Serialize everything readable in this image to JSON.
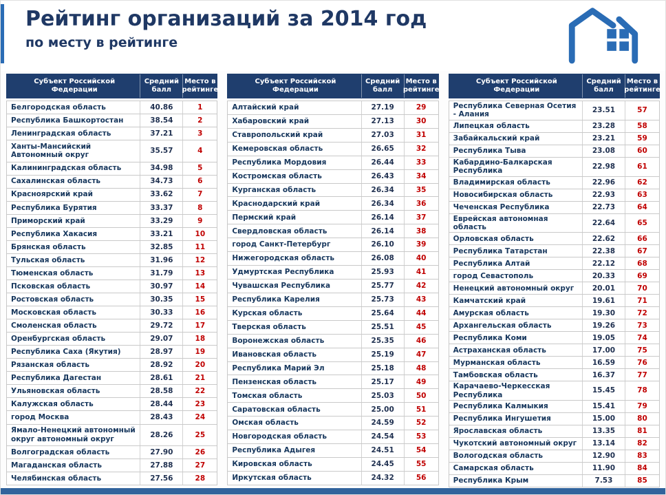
{
  "page": {
    "title": "Рейтинг организаций за 2014 год",
    "subtitle": "по месту в рейтинге"
  },
  "colors": {
    "title_blue": "#1f3864",
    "header_bg": "#1f3e6e",
    "rank_red": "#c00000",
    "logo_blue": "#2a6cb5",
    "bottom_bar": "#31639c"
  },
  "table_header": {
    "subject": "Субъект Российской Федерации",
    "score": "Средний балл",
    "place": "Место в рейтинге"
  },
  "tables": [
    {
      "rows": [
        {
          "subject": "Белгородская область",
          "score": "40.86",
          "place": "1"
        },
        {
          "subject": "Республика Башкортостан",
          "score": "38.54",
          "place": "2"
        },
        {
          "subject": "Ленинградская область",
          "score": "37.21",
          "place": "3"
        },
        {
          "subject": "Ханты-Мансийский Автономный округ",
          "score": "35.57",
          "place": "4"
        },
        {
          "subject": "Калининградская область",
          "score": "34.98",
          "place": "5"
        },
        {
          "subject": "Сахалинская область",
          "score": "34.73",
          "place": "6"
        },
        {
          "subject": "Красноярский край",
          "score": "33.62",
          "place": "7"
        },
        {
          "subject": "Республика Бурятия",
          "score": "33.37",
          "place": "8"
        },
        {
          "subject": "Приморский край",
          "score": "33.29",
          "place": "9"
        },
        {
          "subject": "Республика Хакасия",
          "score": "33.21",
          "place": "10"
        },
        {
          "subject": "Брянская область",
          "score": "32.85",
          "place": "11"
        },
        {
          "subject": "Тульская область",
          "score": "31.96",
          "place": "12"
        },
        {
          "subject": "Тюменская область",
          "score": "31.79",
          "place": "13"
        },
        {
          "subject": "Псковская область",
          "score": "30.97",
          "place": "14"
        },
        {
          "subject": "Ростовская область",
          "score": "30.35",
          "place": "15"
        },
        {
          "subject": "Московская область",
          "score": "30.33",
          "place": "16"
        },
        {
          "subject": "Смоленская область",
          "score": "29.72",
          "place": "17"
        },
        {
          "subject": "Оренбургская область",
          "score": "29.07",
          "place": "18"
        },
        {
          "subject": "Республика Саха (Якутия)",
          "score": "28.97",
          "place": "19"
        },
        {
          "subject": "Рязанская область",
          "score": "28.92",
          "place": "20"
        },
        {
          "subject": "Республика Дагестан",
          "score": "28.61",
          "place": "21"
        },
        {
          "subject": "Ульяновская область",
          "score": "28.58",
          "place": "22"
        },
        {
          "subject": "Калужская область",
          "score": "28.44",
          "place": "23"
        },
        {
          "subject": "город Москва",
          "score": "28.43",
          "place": "24"
        },
        {
          "subject": "Ямало-Ненецкий автономный округ автономный округ",
          "score": "28.26",
          "place": "25"
        },
        {
          "subject": "Волгоградская область",
          "score": "27.90",
          "place": "26"
        },
        {
          "subject": "Магаданская область",
          "score": "27.88",
          "place": "27"
        },
        {
          "subject": "Челябинская область",
          "score": "27.56",
          "place": "28"
        }
      ]
    },
    {
      "rows": [
        {
          "subject": "Алтайский край",
          "score": "27.19",
          "place": "29"
        },
        {
          "subject": "Хабаровский край",
          "score": "27.13",
          "place": "30"
        },
        {
          "subject": "Ставропольский край",
          "score": "27.03",
          "place": "31"
        },
        {
          "subject": "Кемеровская область",
          "score": "26.65",
          "place": "32"
        },
        {
          "subject": "Республика Мордовия",
          "score": "26.44",
          "place": "33"
        },
        {
          "subject": "Костромская область",
          "score": "26.43",
          "place": "34"
        },
        {
          "subject": "Курганская область",
          "score": "26.34",
          "place": "35"
        },
        {
          "subject": "Краснодарский край",
          "score": "26.34",
          "place": "36"
        },
        {
          "subject": "Пермский край",
          "score": "26.14",
          "place": "37"
        },
        {
          "subject": "Свердловская область",
          "score": "26.14",
          "place": "38"
        },
        {
          "subject": "город Санкт-Петербург",
          "score": "26.10",
          "place": "39"
        },
        {
          "subject": "Нижегородская область",
          "score": "26.08",
          "place": "40"
        },
        {
          "subject": "Удмуртская Республика",
          "score": "25.93",
          "place": "41"
        },
        {
          "subject": "Чувашская Республика",
          "score": "25.77",
          "place": "42"
        },
        {
          "subject": "Республика Карелия",
          "score": "25.73",
          "place": "43"
        },
        {
          "subject": "Курская область",
          "score": "25.64",
          "place": "44"
        },
        {
          "subject": "Тверская область",
          "score": "25.51",
          "place": "45"
        },
        {
          "subject": "Воронежская область",
          "score": "25.35",
          "place": "46"
        },
        {
          "subject": "Ивановская область",
          "score": "25.19",
          "place": "47"
        },
        {
          "subject": "Республика Марий Эл",
          "score": "25.18",
          "place": "48"
        },
        {
          "subject": "Пензенская область",
          "score": "25.17",
          "place": "49"
        },
        {
          "subject": "Томская область",
          "score": "25.03",
          "place": "50"
        },
        {
          "subject": "Саратовская область",
          "score": "25.00",
          "place": "51"
        },
        {
          "subject": "Омская область",
          "score": "24.59",
          "place": "52"
        },
        {
          "subject": "Новгородская область",
          "score": "24.54",
          "place": "53"
        },
        {
          "subject": "Республика Адыгея",
          "score": "24.51",
          "place": "54"
        },
        {
          "subject": "Кировская область",
          "score": "24.45",
          "place": "55"
        },
        {
          "subject": "Иркутская область",
          "score": "24.32",
          "place": "56"
        }
      ]
    },
    {
      "rows": [
        {
          "subject": "Республика Северная Осетия - Алания",
          "score": "23.51",
          "place": "57"
        },
        {
          "subject": "Липецкая область",
          "score": "23.28",
          "place": "58"
        },
        {
          "subject": "Забайкальский край",
          "score": "23.21",
          "place": "59"
        },
        {
          "subject": "Республика Тыва",
          "score": "23.08",
          "place": "60"
        },
        {
          "subject": "Кабардино-Балкарская Республика",
          "score": "22.98",
          "place": "61"
        },
        {
          "subject": "Владимирская область",
          "score": "22.96",
          "place": "62"
        },
        {
          "subject": "Новосибирская область",
          "score": "22.93",
          "place": "63"
        },
        {
          "subject": "Чеченская Республика",
          "score": "22.73",
          "place": "64"
        },
        {
          "subject": "Еврейская автономная область",
          "score": "22.64",
          "place": "65"
        },
        {
          "subject": "Орловская область",
          "score": "22.62",
          "place": "66"
        },
        {
          "subject": "Республика Татарстан",
          "score": "22.38",
          "place": "67"
        },
        {
          "subject": "Республика Алтай",
          "score": "22.12",
          "place": "68"
        },
        {
          "subject": "город Севастополь",
          "score": "20.33",
          "place": "69"
        },
        {
          "subject": "Ненецкий автономный округ",
          "score": "20.01",
          "place": "70"
        },
        {
          "subject": "Камчатский край",
          "score": "19.61",
          "place": "71"
        },
        {
          "subject": "Амурская область",
          "score": "19.30",
          "place": "72"
        },
        {
          "subject": "Архангельская область",
          "score": "19.26",
          "place": "73"
        },
        {
          "subject": "Республика Коми",
          "score": "19.05",
          "place": "74"
        },
        {
          "subject": "Астраханская область",
          "score": "17.00",
          "place": "75"
        },
        {
          "subject": "Мурманская область",
          "score": "16.59",
          "place": "76"
        },
        {
          "subject": "Тамбовская область",
          "score": "16.37",
          "place": "77"
        },
        {
          "subject": "Карачаево-Черкесская Республика",
          "score": "15.45",
          "place": "78"
        },
        {
          "subject": "Республика Калмыкия",
          "score": "15.41",
          "place": "79"
        },
        {
          "subject": "Республика Ингушетия",
          "score": "15.00",
          "place": "80"
        },
        {
          "subject": "Ярославская область",
          "score": "13.35",
          "place": "81"
        },
        {
          "subject": "Чукотский автономный округ",
          "score": "13.14",
          "place": "82"
        },
        {
          "subject": "Вологодская область",
          "score": "12.90",
          "place": "83"
        },
        {
          "subject": "Самарская область",
          "score": "11.90",
          "place": "84"
        },
        {
          "subject": "Республика Крым",
          "score": "7.53",
          "place": "85"
        }
      ]
    }
  ]
}
